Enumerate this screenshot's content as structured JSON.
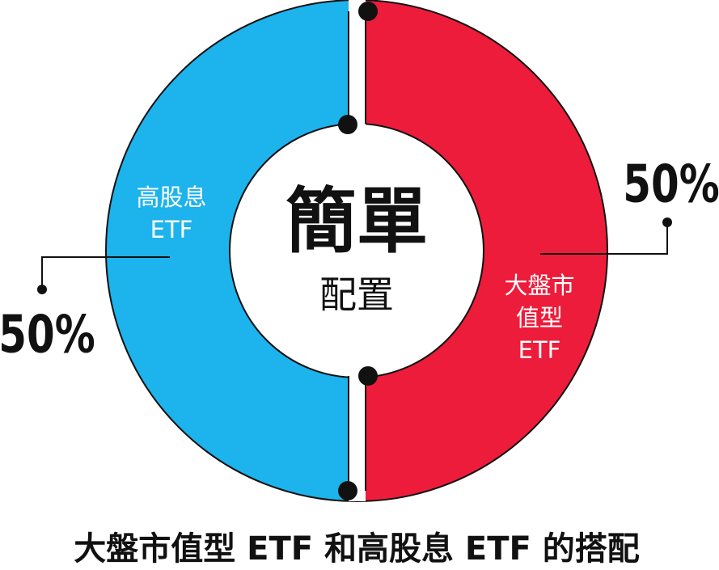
{
  "chart_data": {
    "type": "donut",
    "title": "大盤市值型 ETF 和高股息 ETF 的搭配",
    "center_text": [
      "簡單",
      "配置"
    ],
    "categories": [
      [
        "大盤市",
        "值型",
        "ETF"
      ],
      [
        "高股息",
        "ETF"
      ]
    ],
    "values": [
      50,
      50
    ],
    "value_labels": [
      "50%",
      "50%"
    ],
    "colors": [
      "#ed1c3b",
      "#1db3ec"
    ]
  }
}
